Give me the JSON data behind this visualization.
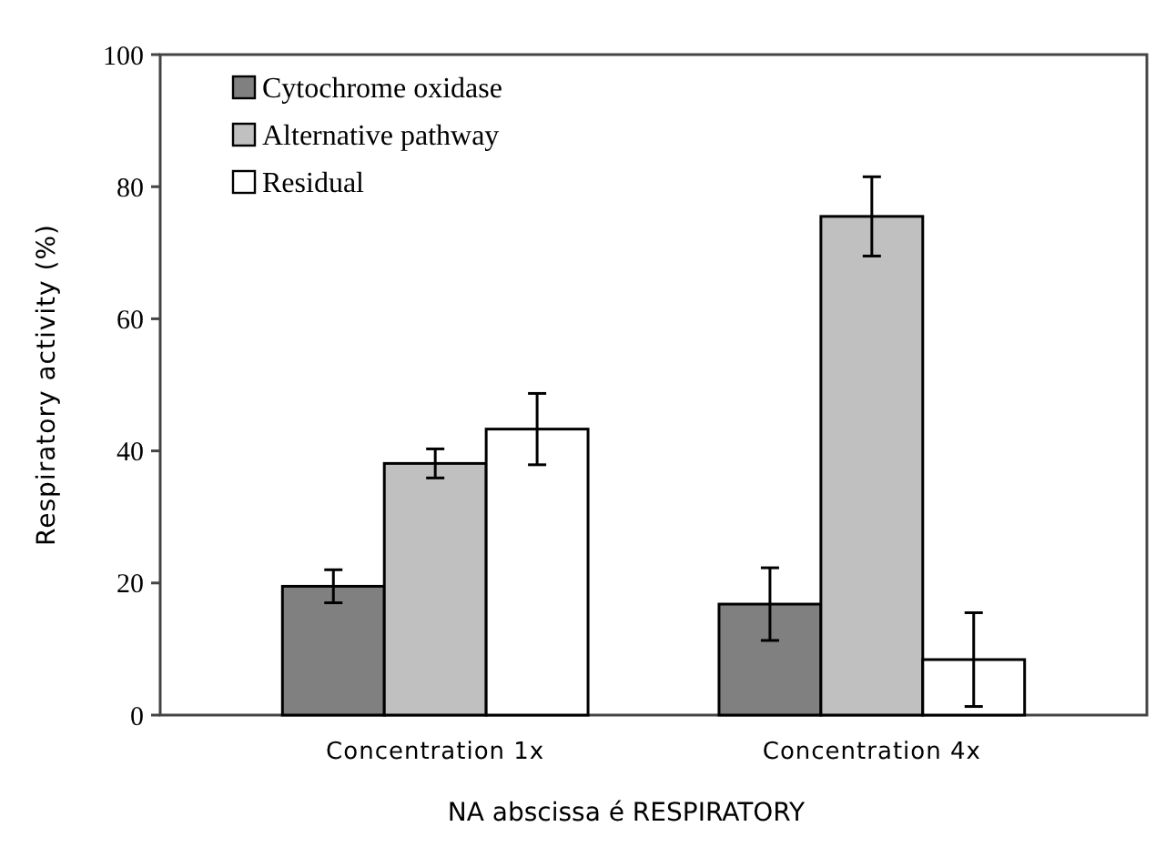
{
  "chart_data": {
    "type": "bar",
    "xlabel": "NA abscissa é RESPIRATORY",
    "ylabel": "Respiratory activity (%)",
    "categories": [
      "Concentration 1x",
      "Concentration 4x"
    ],
    "series": [
      {
        "name": "Cytochrome oxidase",
        "color": "#808080",
        "values": [
          19.5,
          16.8
        ],
        "errors": [
          2.5,
          5.5
        ]
      },
      {
        "name": "Alternative pathway",
        "color": "#c0c0c0",
        "values": [
          38.1,
          75.5
        ],
        "errors": [
          2.2,
          6
        ]
      },
      {
        "name": "Residual",
        "color": "#ffffff",
        "values": [
          43.3,
          8.4
        ],
        "errors": [
          5.4,
          7.1
        ]
      }
    ],
    "ylim": [
      0,
      100
    ],
    "yticks": [
      0,
      20,
      40,
      60,
      80,
      100
    ],
    "legend": "top left",
    "grid": false
  }
}
